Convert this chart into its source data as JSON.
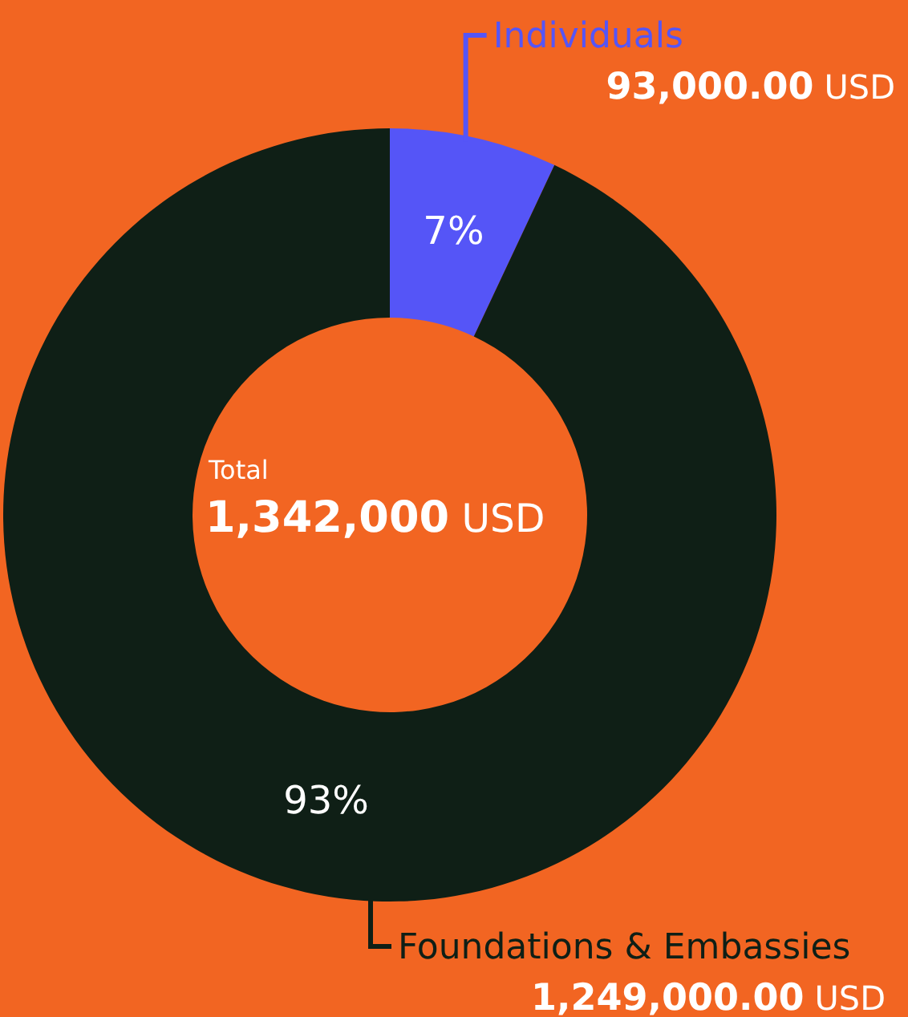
{
  "chart_data": {
    "type": "donut",
    "categories": [
      "Individuals",
      "Foundations & Embassies"
    ],
    "values": [
      7,
      93
    ],
    "colors": [
      "#5555f7",
      "#0f1f16"
    ],
    "value_labels": [
      "7%",
      "93%"
    ],
    "annotations": [
      "93,000.00 USD",
      "1,249,000.00 USD",
      "Total",
      "1,342,000 USD"
    ]
  }
}
